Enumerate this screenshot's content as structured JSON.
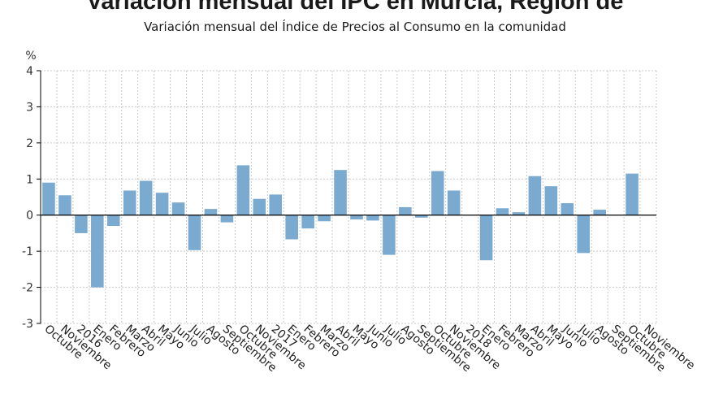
{
  "colors": {
    "bar": "#7aaad0",
    "grid": "#c9c9c9",
    "axis": "#000000"
  },
  "chart_data": {
    "type": "bar",
    "title": "Variación mensual del IPC en Murcia, Región de",
    "subtitle": "Variación mensual del Índice de Precios al Consumo en la comunidad",
    "ylabel": "%",
    "xlabel": "",
    "ylim": [
      -3,
      4
    ],
    "yticks": [
      4,
      3,
      2,
      1,
      0,
      -1,
      -2,
      -3
    ],
    "grid": true,
    "categories": [
      "Octubre",
      "Noviembre",
      "2016",
      "Enero",
      "Febrero",
      "Marzo",
      "Abril",
      "Mayo",
      "Junio",
      "Julio",
      "Agosto",
      "Septiembre",
      "Octubre",
      "Noviembre",
      "2017",
      "Enero",
      "Febrero",
      "Marzo",
      "Abril",
      "Mayo",
      "Junio",
      "Julio",
      "Agosto",
      "Septiembre",
      "Octubre",
      "Noviembre",
      "2018",
      "Enero",
      "Febrero",
      "Marzo",
      "Abril",
      "Mayo",
      "Junio",
      "Julio",
      "Agosto",
      "Septiembre",
      "Octubre",
      "Noviembre"
    ],
    "values": [
      0.9,
      0.55,
      -0.5,
      -2.0,
      -0.3,
      0.68,
      0.95,
      0.62,
      0.35,
      -0.97,
      0.17,
      -0.2,
      1.38,
      0.45,
      0.57,
      -0.67,
      -0.37,
      -0.17,
      1.25,
      -0.12,
      -0.15,
      -1.1,
      0.22,
      -0.07,
      1.22,
      0.68,
      0.0,
      -1.25,
      0.19,
      0.08,
      1.08,
      0.8,
      0.33,
      -1.05,
      0.15,
      0.0,
      1.15,
      0.0
    ]
  }
}
